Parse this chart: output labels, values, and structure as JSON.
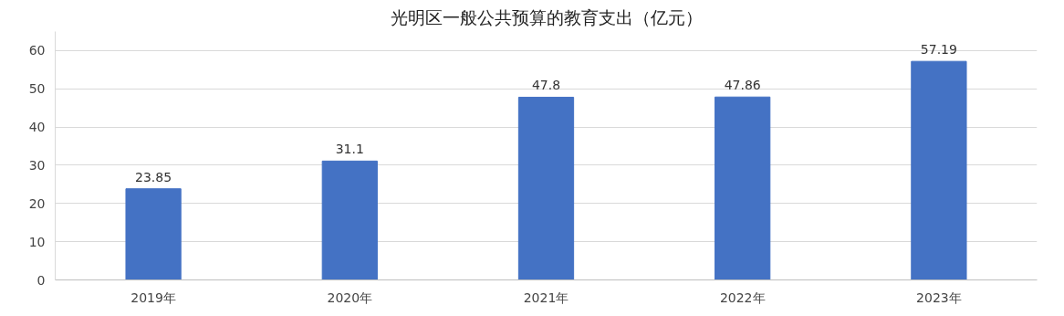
{
  "chart_data": {
    "type": "bar",
    "title": "光明区一般公共预算的教育支出（亿元）",
    "categories": [
      "2019年",
      "2020年",
      "2021年",
      "2022年",
      "2023年"
    ],
    "values": [
      23.85,
      31.1,
      47.8,
      47.86,
      57.19
    ],
    "color": "#4472c4",
    "ylim": [
      0,
      65
    ],
    "yticks": [
      0,
      10,
      20,
      30,
      40,
      50,
      60
    ],
    "grid": "y",
    "data_labels": true
  }
}
